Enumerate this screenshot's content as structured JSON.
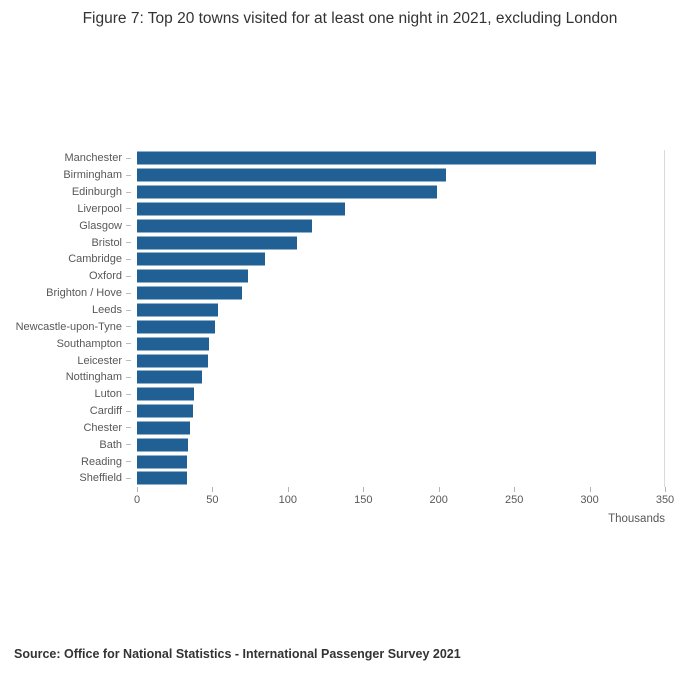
{
  "title": "Figure 7: Top 20 towns visited for at least one night in 2021, excluding London",
  "source": "Source: Office for National Statistics - International Passenger Survey 2021",
  "chart_data": {
    "type": "bar",
    "orientation": "horizontal",
    "title": "Figure 7: Top 20 towns visited for at least one night in 2021, excluding London",
    "categories": [
      "Manchester",
      "Birmingham",
      "Edinburgh",
      "Liverpool",
      "Glasgow",
      "Bristol",
      "Cambridge",
      "Oxford",
      "Brighton / Hove",
      "Leeds",
      "Newcastle-upon-Tyne",
      "Southampton",
      "Leicester",
      "Nottingham",
      "Luton",
      "Cardiff",
      "Chester",
      "Bath",
      "Reading",
      "Sheffield"
    ],
    "values": [
      305,
      205,
      199,
      138,
      116,
      106,
      85,
      74,
      70,
      54,
      52,
      48,
      47,
      43,
      38,
      37,
      35,
      34,
      33,
      33
    ],
    "xlabel": "Thousands",
    "ylabel": "",
    "xlim": [
      0,
      350
    ],
    "x_ticks": [
      0,
      50,
      100,
      150,
      200,
      250,
      300,
      350
    ],
    "bar_color": "#206095",
    "grid": false,
    "legend": false
  }
}
